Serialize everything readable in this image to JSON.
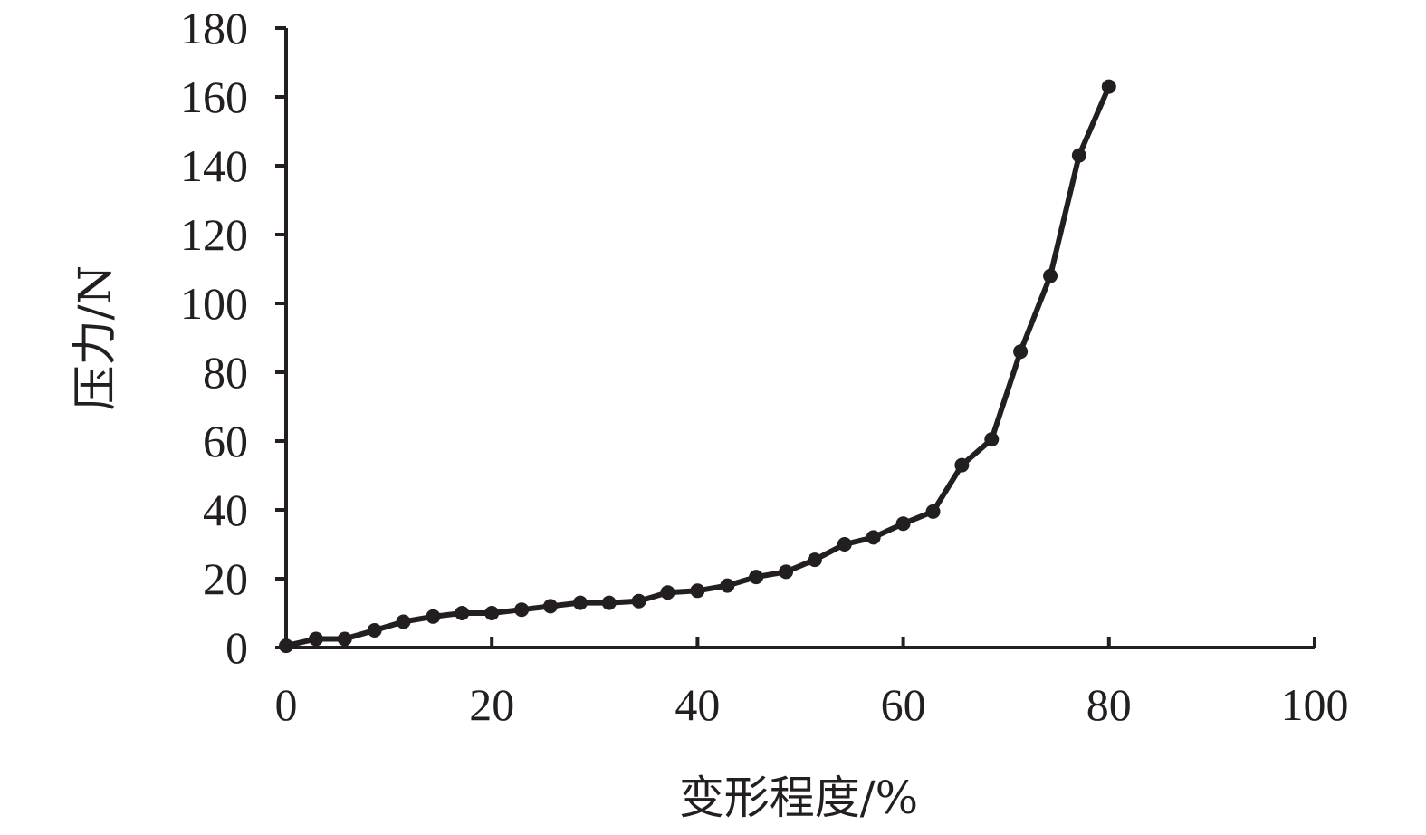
{
  "chart_data": {
    "type": "line",
    "xlabel": "变形程度/%",
    "ylabel": "压力/N",
    "xlim": [
      0,
      100
    ],
    "ylim": [
      0,
      180
    ],
    "xticks": [
      0,
      20,
      40,
      60,
      80,
      100
    ],
    "yticks": [
      0,
      20,
      40,
      60,
      80,
      100,
      120,
      140,
      160,
      180
    ],
    "grid": false,
    "colors": {
      "line": "#231f20",
      "axis": "#231f20"
    },
    "series": [
      {
        "x": [
          0,
          2.9,
          5.7,
          8.6,
          11.4,
          14.3,
          17.1,
          20,
          22.9,
          25.7,
          28.6,
          31.4,
          34.3,
          37.1,
          40,
          42.9,
          45.7,
          48.6,
          51.4,
          54.3,
          57.1,
          60,
          62.9,
          65.7,
          68.6,
          71.4,
          74.3,
          77.1,
          80
        ],
        "y": [
          0.5,
          2.5,
          2.5,
          5,
          7.5,
          9,
          10,
          10,
          11,
          12,
          13,
          13,
          13.5,
          16,
          16.5,
          18,
          20.5,
          22,
          25.5,
          30,
          32,
          36,
          39.5,
          53,
          60.5,
          86,
          108,
          143,
          163
        ]
      }
    ]
  }
}
